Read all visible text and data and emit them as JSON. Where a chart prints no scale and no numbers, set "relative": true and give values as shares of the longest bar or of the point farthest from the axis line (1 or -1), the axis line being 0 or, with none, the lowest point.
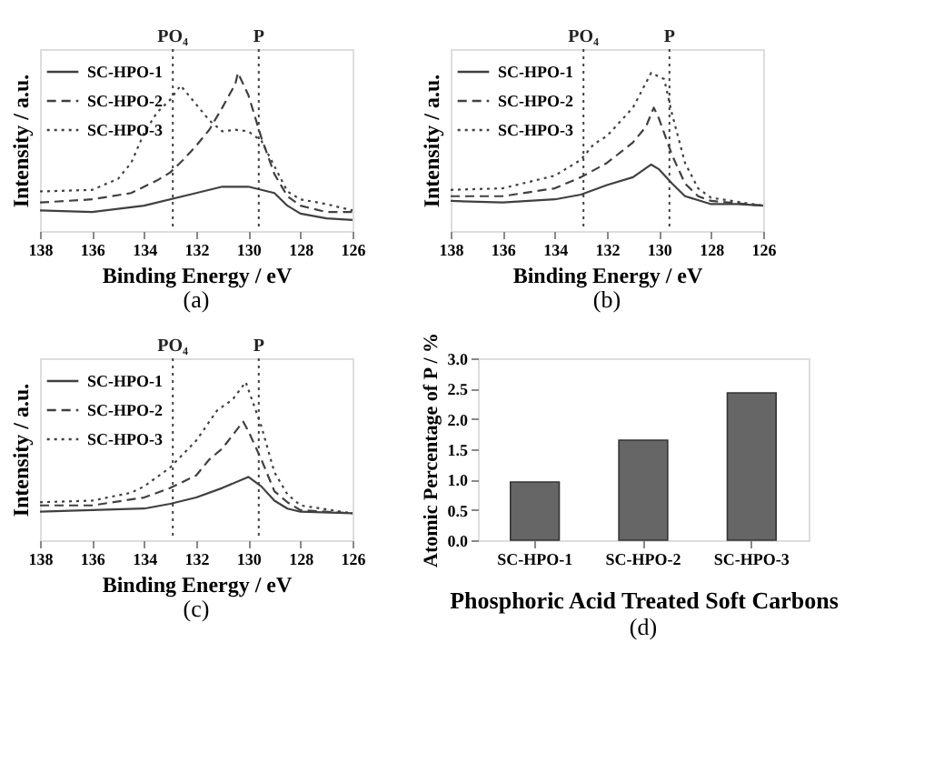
{
  "chart_data": [
    {
      "type": "line",
      "xlabel": "Binding Energy / eV",
      "ylabel": "Intensity / a.u.",
      "annotations": [
        "(a)"
      ],
      "relative": true,
      "xlim": [
        138,
        126
      ],
      "xticks": [
        138,
        136,
        134,
        132,
        130,
        128,
        126
      ],
      "tick_labels": "x",
      "legend": "top left",
      "grid": false,
      "marker": "none",
      "ref_lines": [
        {
          "axis": "x",
          "value": 132.9,
          "label": "PO₄",
          "line_style": "dotted"
        },
        {
          "axis": "x",
          "value": 129.6,
          "label": "P",
          "line_style": "dotted"
        }
      ],
      "series": [
        {
          "name": "SC-HPO-1",
          "color": "#404040",
          "line_style": "solid",
          "x": [
            138,
            136,
            134,
            132,
            131,
            130,
            129,
            128.5,
            128,
            127,
            126
          ],
          "values": [
            0.13,
            0.12,
            0.16,
            0.24,
            0.28,
            0.28,
            0.24,
            0.16,
            0.11,
            0.08,
            0.07
          ]
        },
        {
          "name": "SC-HPO-2",
          "color": "#404040",
          "line_style": "dashed",
          "x": [
            138,
            136,
            134.5,
            133.5,
            133,
            132.5,
            132,
            131.5,
            131,
            130.5,
            130.4,
            130,
            129.5,
            129,
            128.5,
            128,
            127,
            126
          ],
          "values": [
            0.18,
            0.2,
            0.24,
            0.32,
            0.37,
            0.45,
            0.54,
            0.64,
            0.78,
            0.93,
            1.0,
            0.86,
            0.59,
            0.36,
            0.22,
            0.16,
            0.12,
            0.12
          ]
        },
        {
          "name": "SC-HPO-3",
          "color": "#404040",
          "line_style": "dotted",
          "x": [
            138,
            136,
            135,
            134.5,
            134,
            133.5,
            133,
            132.6,
            132,
            131.5,
            131,
            130.5,
            130,
            129.5,
            129,
            128.5,
            128,
            127,
            126
          ],
          "values": [
            0.25,
            0.26,
            0.33,
            0.43,
            0.62,
            0.75,
            0.83,
            0.92,
            0.8,
            0.7,
            0.63,
            0.64,
            0.63,
            0.57,
            0.41,
            0.25,
            0.2,
            0.17,
            0.13
          ]
        }
      ]
    },
    {
      "type": "line",
      "xlabel": "Binding Energy / eV",
      "ylabel": "Intensity / a.u.",
      "annotations": [
        "(b)"
      ],
      "relative": true,
      "xlim": [
        138,
        126
      ],
      "xticks": [
        138,
        136,
        134,
        132,
        130,
        128,
        126
      ],
      "tick_labels": "x",
      "legend": "top left",
      "grid": false,
      "marker": "none",
      "ref_lines": [
        {
          "axis": "x",
          "value": 132.9,
          "label": "PO₄",
          "line_style": "dotted"
        },
        {
          "axis": "x",
          "value": 129.6,
          "label": "P",
          "line_style": "dotted"
        }
      ],
      "series": [
        {
          "name": "SC-HPO-1",
          "color": "#404040",
          "line_style": "solid",
          "x": [
            138,
            136,
            134,
            133,
            132,
            131,
            130.3,
            130,
            129.5,
            129,
            128,
            127,
            126
          ],
          "values": [
            0.19,
            0.18,
            0.2,
            0.23,
            0.29,
            0.34,
            0.42,
            0.39,
            0.3,
            0.22,
            0.17,
            0.17,
            0.16
          ]
        },
        {
          "name": "SC-HPO-2",
          "color": "#404040",
          "line_style": "dashed",
          "x": [
            138,
            136,
            134,
            133,
            132,
            131,
            130.5,
            130.2,
            130,
            129.5,
            129,
            128.5,
            128,
            126
          ],
          "values": [
            0.22,
            0.22,
            0.27,
            0.34,
            0.43,
            0.56,
            0.66,
            0.78,
            0.71,
            0.48,
            0.3,
            0.22,
            0.19,
            0.16
          ]
        },
        {
          "name": "SC-HPO-3",
          "color": "#404040",
          "line_style": "dotted",
          "x": [
            138,
            136,
            134,
            133,
            132.5,
            132,
            131,
            130.3,
            129.8,
            129.5,
            129,
            128.5,
            128,
            126
          ],
          "values": [
            0.26,
            0.27,
            0.35,
            0.45,
            0.55,
            0.6,
            0.78,
            1.0,
            0.96,
            0.74,
            0.43,
            0.27,
            0.21,
            0.16
          ]
        }
      ]
    },
    {
      "type": "line",
      "xlabel": "Binding Energy / eV",
      "ylabel": "Intensity / a.u.",
      "annotations": [
        "(c)"
      ],
      "relative": true,
      "xlim": [
        138,
        126
      ],
      "xticks": [
        138,
        136,
        134,
        132,
        130,
        128,
        126
      ],
      "tick_labels": "x",
      "legend": "top left",
      "grid": false,
      "marker": "none",
      "ref_lines": [
        {
          "axis": "x",
          "value": 132.9,
          "label": "PO₄",
          "line_style": "dotted"
        },
        {
          "axis": "x",
          "value": 129.6,
          "label": "P",
          "line_style": "dotted"
        }
      ],
      "series": [
        {
          "name": "SC-HPO-1",
          "color": "#404040",
          "line_style": "solid",
          "x": [
            138,
            136,
            134,
            133,
            132,
            131,
            130,
            129.5,
            129,
            128.5,
            128,
            126
          ],
          "values": [
            0.18,
            0.19,
            0.2,
            0.23,
            0.27,
            0.33,
            0.4,
            0.34,
            0.25,
            0.2,
            0.18,
            0.17
          ]
        },
        {
          "name": "SC-HPO-2",
          "color": "#404040",
          "line_style": "dashed",
          "x": [
            138,
            136,
            134,
            133,
            132,
            131.5,
            131,
            130.2,
            130,
            129.5,
            129,
            128.5,
            128,
            126
          ],
          "values": [
            0.22,
            0.22,
            0.27,
            0.33,
            0.41,
            0.51,
            0.58,
            0.75,
            0.69,
            0.51,
            0.31,
            0.24,
            0.19,
            0.17
          ]
        },
        {
          "name": "SC-HPO-3",
          "color": "#404040",
          "line_style": "dotted",
          "x": [
            138,
            136,
            134.5,
            134,
            133,
            132,
            131.2,
            130.6,
            130.1,
            129.5,
            129,
            128.5,
            128,
            126
          ],
          "values": [
            0.24,
            0.25,
            0.3,
            0.34,
            0.46,
            0.63,
            0.82,
            0.89,
            1.0,
            0.72,
            0.43,
            0.29,
            0.22,
            0.17
          ]
        }
      ]
    },
    {
      "type": "bar",
      "xlabel": "Phosphoric Acid Treated Soft Carbons",
      "ylabel": "Atomic Percentage of P / %",
      "annotations": [
        "(d)"
      ],
      "categories": [
        "SC-HPO-1",
        "SC-HPO-2",
        "SC-HPO-3"
      ],
      "values": [
        0.96,
        1.65,
        2.43
      ],
      "color": "#666666",
      "ylim": [
        0,
        3
      ],
      "yticks": [
        {
          "value": 0,
          "label": "0.0"
        },
        {
          "value": 0.5,
          "label": "0.5"
        },
        {
          "value": 1,
          "label": "1.0"
        },
        {
          "value": 1.5,
          "label": "1.5"
        },
        {
          "value": 2,
          "label": "2.0"
        },
        {
          "value": 2.5,
          "label": "2.5"
        },
        {
          "value": 3,
          "label": "3.0"
        }
      ],
      "grid": false
    }
  ]
}
